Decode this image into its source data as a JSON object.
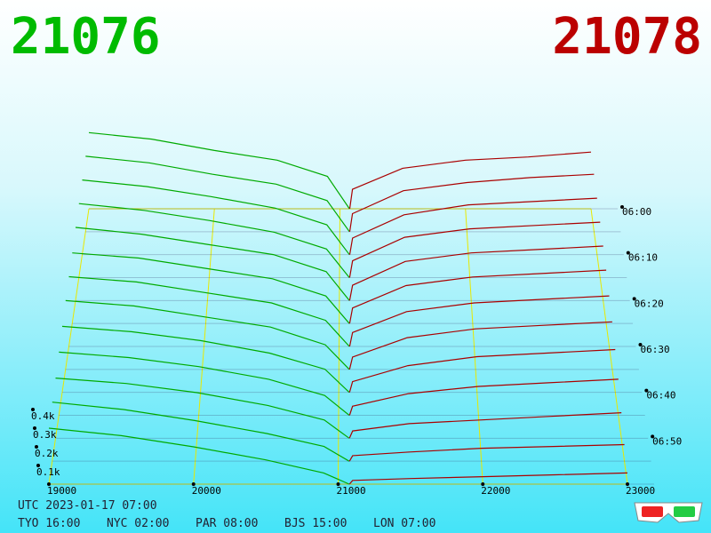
{
  "chart_data": {
    "type": "depth3d",
    "bid_label": "21076",
    "ask_label": "21078",
    "bid_color": "#00aa00",
    "ask_color": "#aa0000",
    "bid_prices": [
      19000,
      19500,
      20000,
      20500,
      20900,
      21076
    ],
    "ask_prices": [
      21078,
      21100,
      21500,
      22000,
      22500,
      23000
    ],
    "xlim": [
      19000,
      23000
    ],
    "xticks": [
      19000,
      20000,
      21000,
      22000,
      23000
    ],
    "ylim": [
      0,
      0.5
    ],
    "yticks": [
      {
        "value": 0.1,
        "label": "0.1k"
      },
      {
        "value": 0.2,
        "label": "0.2k"
      },
      {
        "value": 0.3,
        "label": "0.3k"
      },
      {
        "value": 0.4,
        "label": "0.4k"
      }
    ],
    "zlim": [
      0,
      60
    ],
    "zticks": [
      {
        "value": 0,
        "label": "06:00"
      },
      {
        "value": 10,
        "label": "06:10"
      },
      {
        "value": 20,
        "label": "06:20"
      },
      {
        "value": 30,
        "label": "06:30"
      },
      {
        "value": 40,
        "label": "06:40"
      },
      {
        "value": 50,
        "label": "06:50"
      }
    ],
    "slices": [
      {
        "t": 0,
        "bids": [
          0.47,
          0.43,
          0.36,
          0.3,
          0.2,
          0
        ],
        "asks": [
          0,
          0.12,
          0.25,
          0.3,
          0.32,
          0.35
        ]
      },
      {
        "t": 5,
        "bids": [
          0.46,
          0.42,
          0.35,
          0.29,
          0.19,
          0
        ],
        "asks": [
          0,
          0.11,
          0.25,
          0.3,
          0.33,
          0.35
        ]
      },
      {
        "t": 10,
        "bids": [
          0.45,
          0.41,
          0.35,
          0.28,
          0.18,
          0
        ],
        "asks": [
          0,
          0.1,
          0.24,
          0.3,
          0.32,
          0.34
        ]
      },
      {
        "t": 15,
        "bids": [
          0.44,
          0.4,
          0.34,
          0.27,
          0.17,
          0
        ],
        "asks": [
          0,
          0.1,
          0.24,
          0.29,
          0.31,
          0.33
        ]
      },
      {
        "t": 20,
        "bids": [
          0.43,
          0.39,
          0.33,
          0.27,
          0.17,
          0
        ],
        "asks": [
          0,
          0.09,
          0.23,
          0.28,
          0.3,
          0.32
        ]
      },
      {
        "t": 25,
        "bids": [
          0.41,
          0.38,
          0.32,
          0.26,
          0.16,
          0
        ],
        "asks": [
          0,
          0.09,
          0.22,
          0.27,
          0.29,
          0.31
        ]
      },
      {
        "t": 30,
        "bids": [
          0.4,
          0.37,
          0.31,
          0.25,
          0.15,
          0
        ],
        "asks": [
          0,
          0.08,
          0.2,
          0.25,
          0.27,
          0.29
        ]
      },
      {
        "t": 35,
        "bids": [
          0.39,
          0.36,
          0.3,
          0.24,
          0.14,
          0
        ],
        "asks": [
          0,
          0.07,
          0.18,
          0.23,
          0.25,
          0.27
        ]
      },
      {
        "t": 40,
        "bids": [
          0.37,
          0.34,
          0.29,
          0.22,
          0.13,
          0
        ],
        "asks": [
          0,
          0.06,
          0.15,
          0.2,
          0.22,
          0.24
        ]
      },
      {
        "t": 45,
        "bids": [
          0.35,
          0.32,
          0.27,
          0.2,
          0.11,
          0
        ],
        "asks": [
          0,
          0.05,
          0.12,
          0.16,
          0.18,
          0.2
        ]
      },
      {
        "t": 50,
        "bids": [
          0.33,
          0.3,
          0.25,
          0.18,
          0.1,
          0
        ],
        "asks": [
          0,
          0.04,
          0.08,
          0.1,
          0.12,
          0.14
        ]
      },
      {
        "t": 55,
        "bids": [
          0.32,
          0.28,
          0.22,
          0.15,
          0.08,
          0
        ],
        "asks": [
          0,
          0.03,
          0.05,
          0.07,
          0.08,
          0.09
        ]
      },
      {
        "t": 60,
        "bids": [
          0.3,
          0.26,
          0.2,
          0.13,
          0.06,
          0
        ],
        "asks": [
          0,
          0.02,
          0.03,
          0.04,
          0.05,
          0.06
        ]
      }
    ],
    "utc_label": "UTC 2023-01-17 07:00",
    "clocks": [
      "TYO 16:00",
      "NYC 02:00",
      "PAR 08:00",
      "BJS 15:00",
      "LON 07:00"
    ]
  }
}
